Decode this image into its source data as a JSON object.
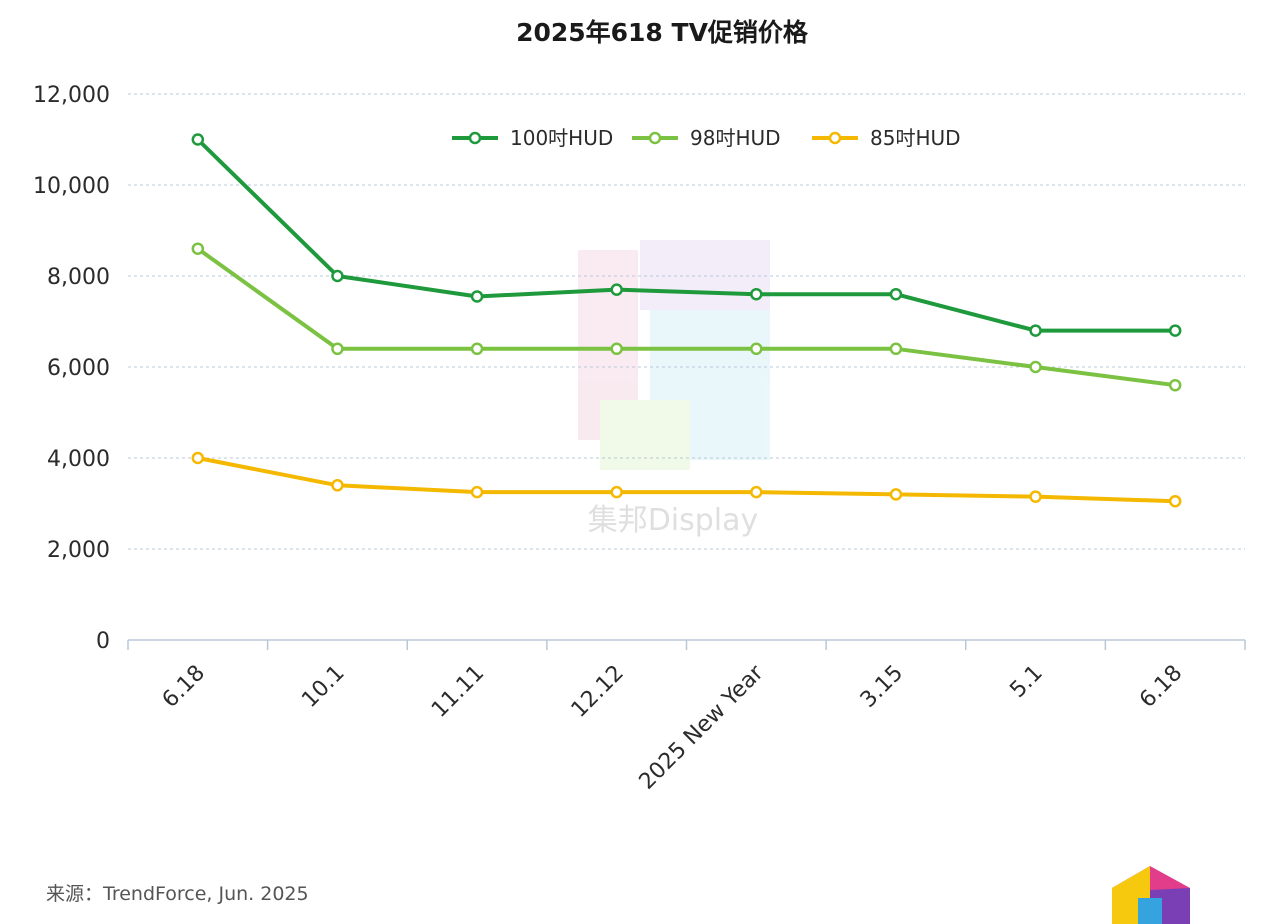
{
  "chart_data": {
    "type": "line",
    "title": "2025年618 TV促销价格",
    "categories": [
      "6.18",
      "10.1",
      "11.11",
      "12.12",
      "2025 New Year",
      "3.15",
      "5.1",
      "6.18"
    ],
    "series": [
      {
        "name": "100吋HUD",
        "color": "#1e9a3c",
        "values": [
          11000,
          8000,
          7550,
          7700,
          7600,
          7600,
          6800,
          6800
        ]
      },
      {
        "name": "98吋HUD",
        "color": "#7cc242",
        "values": [
          8600,
          6400,
          6400,
          6400,
          6400,
          6400,
          6000,
          5600
        ]
      },
      {
        "name": "85吋HUD",
        "color": "#f5b800",
        "values": [
          4000,
          3400,
          3250,
          3250,
          3250,
          3200,
          3150,
          3050
        ]
      }
    ],
    "ylim": [
      0,
      12000
    ],
    "yticks": [
      0,
      2000,
      4000,
      6000,
      8000,
      10000,
      12000
    ],
    "ytick_labels": [
      "0",
      "2,000",
      "4,000",
      "6,000",
      "8,000",
      "10,000",
      "12,000"
    ],
    "grid": true,
    "legend_position": "top-center"
  },
  "source": "来源：TrendForce, Jun. 2025",
  "watermark": "集邦Display"
}
